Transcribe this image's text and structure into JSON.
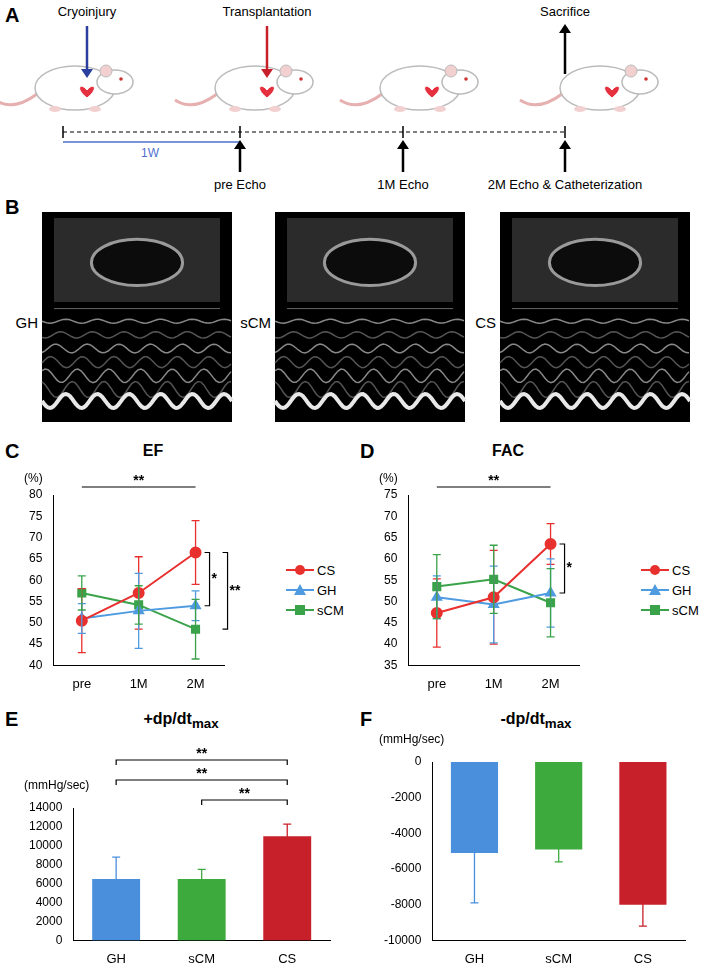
{
  "diagram": {
    "panel": "A",
    "events": [
      {
        "label": "Cryoinjury"
      },
      {
        "label": "Transplantation"
      },
      {
        "label": "Sacrifice"
      }
    ],
    "interval": "1W",
    "timepoints": [
      "pre Echo",
      "1M Echo",
      "2M Echo & Catheterization"
    ]
  },
  "images": {
    "panel": "B",
    "labels": [
      "GH",
      "sCM",
      "CS"
    ]
  },
  "chart_data": [
    {
      "panel": "C",
      "type": "line",
      "title": "EF",
      "ylabel": "(%)",
      "categories": [
        "pre",
        "1M",
        "2M"
      ],
      "ylim": [
        40,
        80
      ],
      "yticks": [
        40,
        45,
        50,
        55,
        60,
        65,
        70,
        75,
        80
      ],
      "grid": false,
      "legend": "right",
      "series": [
        {
          "name": "CS",
          "color": "#e8312f",
          "marker": "circle",
          "values": [
            50.5,
            57,
            66.5
          ],
          "errors": [
            7.5,
            8.5,
            7.5
          ]
        },
        {
          "name": "GH",
          "color": "#4f9be0",
          "marker": "triangle",
          "values": [
            51,
            52.8,
            54
          ],
          "errors": [
            3.5,
            8.8,
            3.5
          ]
        },
        {
          "name": "sCM",
          "color": "#3aa34a",
          "marker": "square",
          "values": [
            57,
            54.2,
            48.5
          ],
          "errors": [
            4,
            4.5,
            7
          ]
        }
      ],
      "annotations": [
        {
          "text": "**",
          "from": "pre",
          "to": "2M"
        },
        {
          "text": "*",
          "from": "CS",
          "to": "GH",
          "at": "2M"
        },
        {
          "text": "**",
          "from": "CS",
          "to": "sCM",
          "at": "2M"
        }
      ]
    },
    {
      "panel": "D",
      "type": "line",
      "title": "FAC",
      "ylabel": "(%)",
      "categories": [
        "pre",
        "1M",
        "2M"
      ],
      "ylim": [
        35,
        75
      ],
      "yticks": [
        35,
        40,
        45,
        50,
        55,
        60,
        65,
        70,
        75
      ],
      "grid": false,
      "legend": "right",
      "series": [
        {
          "name": "CS",
          "color": "#e8312f",
          "marker": "circle",
          "values": [
            47.3,
            51,
            63.5
          ],
          "errors": [
            8,
            11,
            4.8
          ]
        },
        {
          "name": "GH",
          "color": "#4f9be0",
          "marker": "triangle",
          "values": [
            51,
            49.3,
            52
          ],
          "errors": [
            5,
            9,
            8
          ]
        },
        {
          "name": "sCM",
          "color": "#3aa34a",
          "marker": "square",
          "values": [
            53.5,
            55.2,
            49.7
          ],
          "errors": [
            7.5,
            8,
            8
          ]
        }
      ],
      "annotations": [
        {
          "text": "**",
          "from": "pre",
          "to": "2M"
        },
        {
          "text": "*",
          "from": "CS",
          "to": "GH",
          "at": "2M"
        }
      ]
    },
    {
      "panel": "E",
      "type": "bar",
      "title": "+dp/dt",
      "title_sub": "max",
      "ylabel": "(mmHg/sec)",
      "categories": [
        "GH",
        "sCM",
        "CS"
      ],
      "values": [
        6500,
        6500,
        11000
      ],
      "errors": [
        2300,
        1000,
        1300
      ],
      "colors": [
        "#4a8fdc",
        "#3caa3c",
        "#c8202a"
      ],
      "ylim": [
        0,
        14000
      ],
      "yticks": [
        0,
        2000,
        4000,
        6000,
        8000,
        10000,
        12000,
        14000
      ],
      "grid": false,
      "annotations": [
        {
          "text": "**",
          "from": "GH",
          "to": "CS"
        },
        {
          "text": "**",
          "from": "GH",
          "to": "CS"
        },
        {
          "text": "**",
          "from": "sCM",
          "to": "CS"
        }
      ]
    },
    {
      "panel": "F",
      "type": "bar",
      "title": "-dp/dt",
      "title_sub": "max",
      "ylabel": "(mmHg/sec)",
      "categories": [
        "GH",
        "sCM",
        "CS"
      ],
      "values": [
        -5100,
        -4900,
        -8000
      ],
      "errors": [
        2800,
        700,
        1200
      ],
      "colors": [
        "#4a8fdc",
        "#3caa3c",
        "#c8202a"
      ],
      "ylim": [
        -10000,
        0
      ],
      "yticks": [
        -10000,
        -8000,
        -6000,
        -4000,
        -2000,
        0
      ],
      "grid": false
    }
  ]
}
